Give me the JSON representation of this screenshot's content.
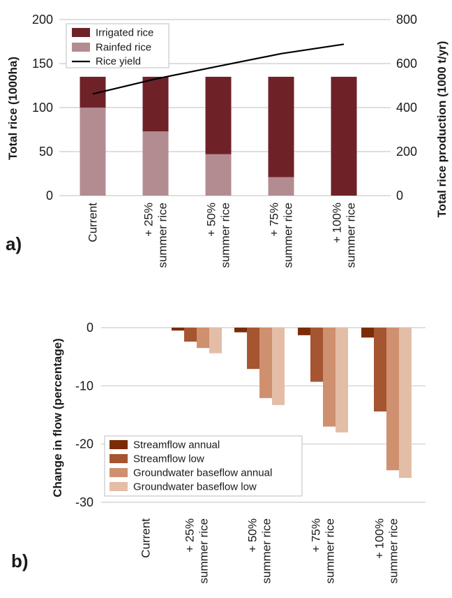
{
  "chart_data": [
    {
      "panel_label": "a)",
      "type": "bar",
      "stacked": true,
      "categories": [
        [
          "Current"
        ],
        [
          "+ 25%",
          "summer rice"
        ],
        [
          "+ 50%",
          "summer rice"
        ],
        [
          "+ 75%",
          "summer rice"
        ],
        [
          "+ 100%",
          "summer rice"
        ]
      ],
      "series": [
        {
          "name": "Irrigated rice",
          "color": "#6e2228",
          "values": [
            35,
            62,
            88,
            114,
            135
          ]
        },
        {
          "name": "Rainfed rice",
          "color": "#b38c91",
          "values": [
            100,
            73,
            47,
            21,
            0
          ]
        }
      ],
      "line_series": {
        "name": "Rice yield",
        "color": "#000000",
        "axis": "right",
        "values": [
          462,
          530,
          588,
          645,
          688
        ]
      },
      "ylabel": "Total rice (1000ha)",
      "ylabel_right": "Total rice production (1000 t/yr)",
      "ylim": [
        0,
        200
      ],
      "yticks": [
        "0",
        "50",
        "100",
        "150",
        "200"
      ],
      "ylim_right": [
        0,
        800
      ],
      "yticks_right": [
        "0",
        "200",
        "400",
        "600",
        "800"
      ],
      "grid": true,
      "legend_position": "top-left"
    },
    {
      "panel_label": "b)",
      "type": "bar",
      "categories": [
        [
          "Current"
        ],
        [
          "+ 25%",
          "summer rice"
        ],
        [
          "+ 50%",
          "summer rice"
        ],
        [
          "+ 75%",
          "summer rice"
        ],
        [
          "+ 100%",
          "summer rice"
        ]
      ],
      "series": [
        {
          "name": "Streamflow annual",
          "color": "#7b2c06",
          "values": [
            0,
            -0.5,
            -0.8,
            -1.3,
            -1.7
          ]
        },
        {
          "name": "Streamflow low",
          "color": "#a65531",
          "values": [
            0,
            -2.4,
            -7.1,
            -9.3,
            -14.4
          ]
        },
        {
          "name": "Groundwater baseflow annual",
          "color": "#cf9070",
          "values": [
            0,
            -3.5,
            -12.1,
            -17.0,
            -24.5
          ]
        },
        {
          "name": "Groundwater baseflow low",
          "color": "#e4bda7",
          "values": [
            0,
            -4.4,
            -13.3,
            -18.0,
            -25.8
          ]
        }
      ],
      "ylabel": "Change in flow (percentage)",
      "ylim": [
        -30,
        0
      ],
      "yticks": [
        "0",
        "-10",
        "-20",
        "-30"
      ],
      "grid": true,
      "legend_position": "bottom-left"
    }
  ]
}
